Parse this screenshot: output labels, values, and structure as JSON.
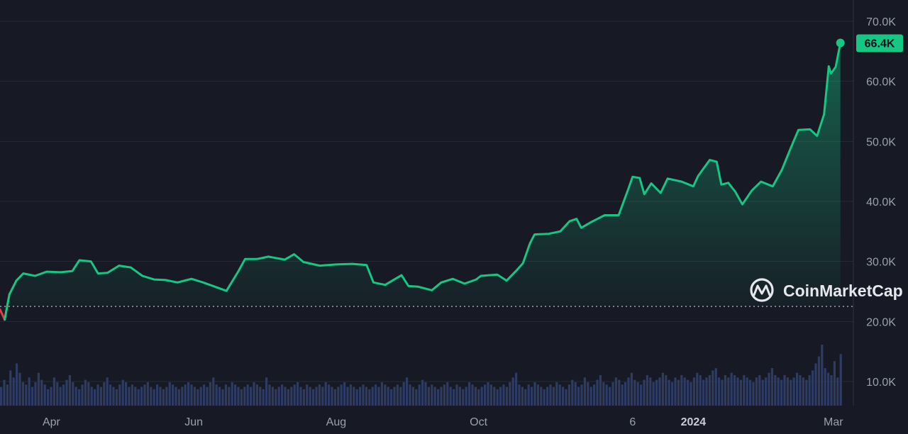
{
  "colors": {
    "background": "#171924",
    "up": "#16c784",
    "down": "#ea3943",
    "volume": "#2e3b63",
    "baseline": "#9aa0ae"
  },
  "logo": {
    "text": "CoinMarketCap",
    "icon": "coinmarketcap-logo-icon"
  },
  "current_price_label": "66.4K",
  "chart_data": {
    "type": "area",
    "title": "",
    "xlabel": "",
    "ylabel": "",
    "ylim": [
      5000,
      72500
    ],
    "y_ticks": [
      {
        "value": 70000,
        "label": "70.0K"
      },
      {
        "value": 60000,
        "label": "60.0K"
      },
      {
        "value": 50000,
        "label": "50.0K"
      },
      {
        "value": 40000,
        "label": "40.0K"
      },
      {
        "value": 30000,
        "label": "30.0K"
      },
      {
        "value": 20000,
        "label": "20.0K"
      },
      {
        "value": 10000,
        "label": "10.0K"
      }
    ],
    "x_ticks": [
      {
        "date": "2023-04-01",
        "label": "Apr",
        "bold": false
      },
      {
        "date": "2023-06-01",
        "label": "Jun",
        "bold": false
      },
      {
        "date": "2023-08-01",
        "label": "Aug",
        "bold": false
      },
      {
        "date": "2023-10-01",
        "label": "Oct",
        "bold": false
      },
      {
        "date": "2023-12-06",
        "label": "6",
        "bold": false
      },
      {
        "date": "2024-01-01",
        "label": "2024",
        "bold": true
      },
      {
        "date": "2024-03-01",
        "label": "Mar",
        "bold": false
      }
    ],
    "x_range": [
      "2023-03-10",
      "2024-03-05"
    ],
    "baseline": 22500,
    "grid": true,
    "series": [
      {
        "points": [
          [
            "2023-03-10",
            22000
          ],
          [
            "2023-03-12",
            20300
          ],
          [
            "2023-03-14",
            24500
          ],
          [
            "2023-03-17",
            26800
          ],
          [
            "2023-03-20",
            28000
          ],
          [
            "2023-03-25",
            27600
          ],
          [
            "2023-03-30",
            28300
          ],
          [
            "2023-04-05",
            28200
          ],
          [
            "2023-04-10",
            28400
          ],
          [
            "2023-04-13",
            30200
          ],
          [
            "2023-04-18",
            30000
          ],
          [
            "2023-04-21",
            28000
          ],
          [
            "2023-04-25",
            28100
          ],
          [
            "2023-04-30",
            29300
          ],
          [
            "2023-05-05",
            29000
          ],
          [
            "2023-05-10",
            27600
          ],
          [
            "2023-05-15",
            27000
          ],
          [
            "2023-05-20",
            26900
          ],
          [
            "2023-05-25",
            26500
          ],
          [
            "2023-05-31",
            27100
          ],
          [
            "2023-06-05",
            26500
          ],
          [
            "2023-06-10",
            25800
          ],
          [
            "2023-06-15",
            25100
          ],
          [
            "2023-06-20",
            28300
          ],
          [
            "2023-06-23",
            30400
          ],
          [
            "2023-06-28",
            30400
          ],
          [
            "2023-07-03",
            30800
          ],
          [
            "2023-07-10",
            30300
          ],
          [
            "2023-07-14",
            31200
          ],
          [
            "2023-07-18",
            29900
          ],
          [
            "2023-07-25",
            29300
          ],
          [
            "2023-08-01",
            29500
          ],
          [
            "2023-08-08",
            29600
          ],
          [
            "2023-08-14",
            29400
          ],
          [
            "2023-08-17",
            26500
          ],
          [
            "2023-08-22",
            26100
          ],
          [
            "2023-08-29",
            27700
          ],
          [
            "2023-09-01",
            25900
          ],
          [
            "2023-09-05",
            25800
          ],
          [
            "2023-09-11",
            25200
          ],
          [
            "2023-09-15",
            26500
          ],
          [
            "2023-09-20",
            27100
          ],
          [
            "2023-09-25",
            26300
          ],
          [
            "2023-09-30",
            27000
          ],
          [
            "2023-10-02",
            27600
          ],
          [
            "2023-10-09",
            27800
          ],
          [
            "2023-10-13",
            26800
          ],
          [
            "2023-10-17",
            28400
          ],
          [
            "2023-10-20",
            29700
          ],
          [
            "2023-10-23",
            33000
          ],
          [
            "2023-10-25",
            34500
          ],
          [
            "2023-10-31",
            34600
          ],
          [
            "2023-11-05",
            35000
          ],
          [
            "2023-11-09",
            36700
          ],
          [
            "2023-11-12",
            37100
          ],
          [
            "2023-11-14",
            35600
          ],
          [
            "2023-11-18",
            36500
          ],
          [
            "2023-11-24",
            37700
          ],
          [
            "2023-11-30",
            37700
          ],
          [
            "2023-12-04",
            41900
          ],
          [
            "2023-12-06",
            44100
          ],
          [
            "2023-12-09",
            43900
          ],
          [
            "2023-12-11",
            41200
          ],
          [
            "2023-12-14",
            43000
          ],
          [
            "2023-12-18",
            41400
          ],
          [
            "2023-12-21",
            43800
          ],
          [
            "2023-12-27",
            43300
          ],
          [
            "2024-01-01",
            42500
          ],
          [
            "2024-01-03",
            44200
          ],
          [
            "2024-01-08",
            46900
          ],
          [
            "2024-01-11",
            46600
          ],
          [
            "2024-01-13",
            42800
          ],
          [
            "2024-01-16",
            43100
          ],
          [
            "2024-01-19",
            41600
          ],
          [
            "2024-01-22",
            39500
          ],
          [
            "2024-01-26",
            41800
          ],
          [
            "2024-01-30",
            43300
          ],
          [
            "2024-02-04",
            42500
          ],
          [
            "2024-02-08",
            45300
          ],
          [
            "2024-02-11",
            48200
          ],
          [
            "2024-02-15",
            51900
          ],
          [
            "2024-02-20",
            52000
          ],
          [
            "2024-02-23",
            50900
          ],
          [
            "2024-02-26",
            54500
          ],
          [
            "2024-02-28",
            62500
          ],
          [
            "2024-02-29",
            61300
          ],
          [
            "2024-03-02",
            62400
          ],
          [
            "2024-03-04",
            66400
          ]
        ]
      }
    ],
    "volume_scale_note": "",
    "volume": [
      8,
      11,
      9,
      15,
      12,
      18,
      14,
      10,
      9,
      12,
      8,
      10,
      14,
      11,
      9,
      7,
      8,
      12,
      10,
      8,
      9,
      11,
      13,
      10,
      8,
      7,
      9,
      11,
      10,
      8,
      7,
      9,
      8,
      10,
      12,
      9,
      8,
      7,
      9,
      11,
      10,
      8,
      9,
      8,
      7,
      8,
      9,
      10,
      8,
      7,
      9,
      8,
      7,
      8,
      10,
      9,
      8,
      7,
      8,
      9,
      10,
      9,
      8,
      7,
      8,
      9,
      8,
      10,
      12,
      9,
      8,
      7,
      9,
      8,
      10,
      9,
      8,
      7,
      8,
      9,
      8,
      10,
      9,
      8,
      7,
      12,
      9,
      8,
      7,
      8,
      9,
      8,
      7,
      8,
      9,
      10,
      8,
      7,
      9,
      8,
      7,
      8,
      9,
      8,
      10,
      9,
      8,
      7,
      8,
      9,
      10,
      8,
      9,
      8,
      7,
      8,
      9,
      8,
      7,
      8,
      9,
      8,
      10,
      9,
      8,
      7,
      8,
      9,
      8,
      10,
      12,
      9,
      8,
      7,
      9,
      11,
      10,
      8,
      9,
      8,
      7,
      8,
      9,
      10,
      8,
      7,
      9,
      8,
      7,
      8,
      10,
      9,
      8,
      7,
      8,
      9,
      10,
      9,
      8,
      7,
      8,
      9,
      8,
      10,
      12,
      14,
      9,
      8,
      7,
      9,
      8,
      10,
      9,
      8,
      7,
      8,
      9,
      8,
      10,
      9,
      8,
      7,
      9,
      11,
      10,
      8,
      9,
      12,
      10,
      8,
      9,
      11,
      13,
      10,
      9,
      8,
      10,
      12,
      11,
      9,
      10,
      12,
      14,
      11,
      10,
      9,
      11,
      13,
      12,
      10,
      11,
      12,
      14,
      13,
      11,
      10,
      12,
      11,
      13,
      12,
      11,
      10,
      12,
      14,
      13,
      11,
      12,
      13,
      15,
      16,
      12,
      11,
      13,
      12,
      14,
      13,
      12,
      11,
      13,
      12,
      11,
      10,
      12,
      13,
      11,
      12,
      14,
      16,
      13,
      12,
      11,
      13,
      12,
      11,
      12,
      14,
      13,
      12,
      11,
      13,
      15,
      18,
      21,
      26,
      16,
      14,
      13,
      19,
      12,
      22
    ]
  }
}
